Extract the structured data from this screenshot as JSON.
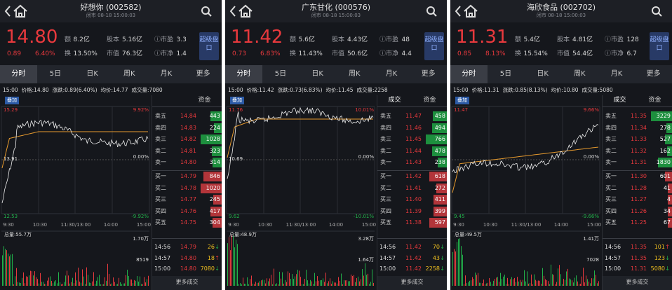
{
  "panels": [
    {
      "title": "好想你 (002582)",
      "status": "闭市 08-18 15:00:03",
      "price": "14.80",
      "change": "0.89",
      "change_pct": "6.40%",
      "stats": [
        {
          "label": "额",
          "value": "8.2亿"
        },
        {
          "label": "股本",
          "value": "5.16亿"
        },
        {
          "label": "ⓘ市盈",
          "value": "3.3"
        },
        {
          "label": "换",
          "value": "13.50%"
        },
        {
          "label": "市值",
          "value": "76.3亿"
        },
        {
          "label": "ⓘ市净",
          "value": "1.4"
        }
      ],
      "super_button": "超级盘口",
      "tabs": [
        "分时",
        "5日",
        "日K",
        "周K",
        "月K",
        "更多"
      ],
      "info": [
        "15:00",
        "价格:14.80",
        "涨跌:0.89(6.40%)",
        "均价:14.77",
        "成交量:7080"
      ],
      "overlay": "叠加",
      "chart_labels": {
        "top": "15.29",
        "top_pct": "9.92%",
        "mid": "13.91",
        "mid_pct": "0.00%",
        "bottom": "12.53",
        "bottom_pct": "-9.92%"
      },
      "times": [
        "9:30",
        "10:30",
        "11:30/13:00",
        "14:00",
        "15:00"
      ],
      "volume_total": "总量:55.7万",
      "volume_top": "1.70万",
      "volume_mid": "8519",
      "book_tabs": [
        "资金"
      ],
      "book": [
        {
          "label": "卖五",
          "price": "14.84",
          "volume": 443
        },
        {
          "label": "卖四",
          "price": "14.83",
          "volume": 224
        },
        {
          "label": "卖三",
          "price": "14.82",
          "volume": 1028
        },
        {
          "label": "卖二",
          "price": "14.81",
          "volume": 323
        },
        {
          "label": "卖一",
          "price": "14.80",
          "volume": 314
        },
        {
          "label": "买一",
          "price": "14.79",
          "volume": 846
        },
        {
          "label": "买二",
          "price": "14.78",
          "volume": 1020
        },
        {
          "label": "买三",
          "price": "14.77",
          "volume": 245
        },
        {
          "label": "买四",
          "price": "14.76",
          "volume": 417
        },
        {
          "label": "买五",
          "price": "14.75",
          "volume": 304
        }
      ],
      "trades": [
        {
          "time": "14:56",
          "price": "14.79",
          "volume": 26,
          "dir": "↓"
        },
        {
          "time": "14:57",
          "price": "14.80",
          "volume": 18,
          "dir": "↑"
        },
        {
          "time": "15:00",
          "price": "14.80",
          "volume": 7080,
          "dir": "↓"
        }
      ],
      "more": "更多成交"
    },
    {
      "title": "广东甘化 (000576)",
      "status": "闭市 08-18 15:00:03",
      "price": "11.42",
      "change": "0.73",
      "change_pct": "6.83%",
      "stats": [
        {
          "label": "额",
          "value": "5.6亿"
        },
        {
          "label": "股本",
          "value": "4.43亿"
        },
        {
          "label": "ⓘ市盈",
          "value": "48"
        },
        {
          "label": "换",
          "value": "11.43%"
        },
        {
          "label": "市值",
          "value": "50.6亿"
        },
        {
          "label": "ⓘ市净",
          "value": "4.4"
        }
      ],
      "super_button": "超级盘口",
      "tabs": [
        "分时",
        "5日",
        "日K",
        "周K",
        "月K",
        "更多"
      ],
      "info": [
        "15:00",
        "价格:11.42",
        "涨跌:0.73(6.83%)",
        "均价:11.45",
        "成交量:2258"
      ],
      "overlay": "叠加",
      "chart_labels": {
        "top": "11.76",
        "top_pct": "10.01%",
        "mid": "10.69",
        "mid_pct": "0.00%",
        "bottom": "9.62",
        "bottom_pct": "-10.01%"
      },
      "times": [
        "9:30",
        "10:30",
        "11:30/13:00",
        "14:00",
        "15:00"
      ],
      "volume_total": "总量:48.9万",
      "volume_top": "3.28万",
      "volume_mid": "1.64万",
      "book_tabs": [
        "成交",
        "资金"
      ],
      "book": [
        {
          "label": "卖五",
          "price": "11.47",
          "volume": 458
        },
        {
          "label": "卖四",
          "price": "11.46",
          "volume": 494
        },
        {
          "label": "卖三",
          "price": "11.45",
          "volume": 766
        },
        {
          "label": "卖二",
          "price": "11.44",
          "volume": 478
        },
        {
          "label": "卖一",
          "price": "11.43",
          "volume": 238
        },
        {
          "label": "买一",
          "price": "11.42",
          "volume": 618
        },
        {
          "label": "买二",
          "price": "11.41",
          "volume": 272
        },
        {
          "label": "买三",
          "price": "11.40",
          "volume": 411
        },
        {
          "label": "买四",
          "price": "11.39",
          "volume": 399
        },
        {
          "label": "买五",
          "price": "11.38",
          "volume": 597
        }
      ],
      "trades": [
        {
          "time": "14:56",
          "price": "11.42",
          "volume": 70,
          "dir": "↓"
        },
        {
          "time": "14:57",
          "price": "11.42",
          "volume": 43,
          "dir": "↓"
        },
        {
          "time": "15:00",
          "price": "11.42",
          "volume": 2258,
          "dir": "↓"
        }
      ],
      "more": "更多成交"
    },
    {
      "title": "海欣食品 (002702)",
      "status": "闭市 08-18 15:00:03",
      "price": "11.31",
      "change": "0.85",
      "change_pct": "8.13%",
      "stats": [
        {
          "label": "额",
          "value": "5.4亿"
        },
        {
          "label": "股本",
          "value": "4.81亿"
        },
        {
          "label": "ⓘ市盈",
          "value": "128"
        },
        {
          "label": "换",
          "value": "15.54%"
        },
        {
          "label": "市值",
          "value": "54.4亿"
        },
        {
          "label": "ⓘ市净",
          "value": "6.7"
        }
      ],
      "super_button": "超级盘口",
      "tabs": [
        "分时",
        "5日",
        "日K",
        "周K",
        "月K",
        "更多"
      ],
      "info": [
        "15:00",
        "价格:11.31",
        "涨跌:0.85(8.13%)",
        "均价:10.80",
        "成交量:5080"
      ],
      "overlay": "叠加",
      "chart_labels": {
        "top": "11.47",
        "top_pct": "9.66%",
        "mid_pct": "0.00%",
        "bottom": "9.45",
        "bottom_pct": "-9.66%"
      },
      "times": [
        "9:30",
        "10:30",
        "11:30/13:00",
        "14:00",
        "15:00"
      ],
      "volume_total": "总量:49.5万",
      "volume_top": "1.41万",
      "volume_mid": "7028",
      "book_tabs": [
        "成交",
        "资金"
      ],
      "book": [
        {
          "label": "卖五",
          "price": "11.35",
          "volume": 3229
        },
        {
          "label": "卖四",
          "price": "11.34",
          "volume": 278
        },
        {
          "label": "卖三",
          "price": "11.33",
          "volume": 527
        },
        {
          "label": "卖二",
          "price": "11.32",
          "volume": 162
        },
        {
          "label": "卖一",
          "price": "11.31",
          "volume": 1830
        },
        {
          "label": "买一",
          "price": "11.30",
          "volume": 601
        },
        {
          "label": "买二",
          "price": "11.28",
          "volume": 41
        },
        {
          "label": "买三",
          "price": "11.27",
          "volume": 4
        },
        {
          "label": "买四",
          "price": "11.26",
          "volume": 34
        },
        {
          "label": "买五",
          "price": "11.25",
          "volume": 67
        }
      ],
      "trades": [
        {
          "time": "14:56",
          "price": "11.35",
          "volume": 101,
          "dir": "↑"
        },
        {
          "time": "14:57",
          "price": "11.35",
          "volume": 123,
          "dir": "↓"
        },
        {
          "time": "15:00",
          "price": "11.31",
          "volume": 5080,
          "dir": "↓"
        }
      ],
      "more": "更多成交"
    }
  ]
}
